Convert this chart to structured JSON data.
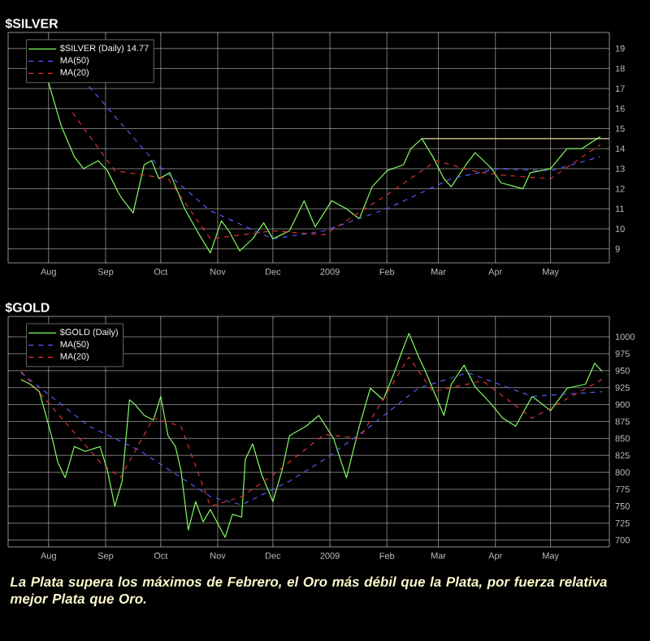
{
  "chart_data": [
    {
      "type": "line",
      "title": "$SILVER",
      "legend": "top left",
      "grid": true,
      "xlim": [
        "2008-07-10",
        "2009-06-02"
      ],
      "xticks": [
        {
          "value": "2008-08-01",
          "label": "Aug"
        },
        {
          "value": "2008-09-01",
          "label": "Sep"
        },
        {
          "value": "2008-10-01",
          "label": "Oct"
        },
        {
          "value": "2008-11-01",
          "label": "Nov"
        },
        {
          "value": "2008-12-01",
          "label": "Dec"
        },
        {
          "value": "2009-01-01",
          "label": "2009"
        },
        {
          "value": "2009-02-01",
          "label": "Feb"
        },
        {
          "value": "2009-03-01",
          "label": "Mar"
        },
        {
          "value": "2009-04-01",
          "label": "Apr"
        },
        {
          "value": "2009-05-01",
          "label": "May"
        }
      ],
      "ylim": [
        8.3,
        19.8
      ],
      "yticks": [
        9,
        10,
        11,
        12,
        13,
        14,
        15,
        16,
        17,
        18,
        19
      ],
      "series": [
        {
          "name": "$SILVER (Daily) 14.77",
          "color": "#80ff60",
          "line_style": "solid",
          "x": [
            "2008-08-01",
            "2008-08-08",
            "2008-08-15",
            "2008-08-20",
            "2008-08-28",
            "2008-09-02",
            "2008-09-08",
            "2008-09-10",
            "2008-09-16",
            "2008-09-22",
            "2008-09-26",
            "2008-09-30",
            "2008-10-06",
            "2008-10-14",
            "2008-10-22",
            "2008-10-28",
            "2008-11-03",
            "2008-11-07",
            "2008-11-13",
            "2008-11-20",
            "2008-11-26",
            "2008-12-01",
            "2008-12-10",
            "2008-12-18",
            "2008-12-24",
            "2009-01-02",
            "2009-01-10",
            "2009-01-17",
            "2009-01-24",
            "2009-02-01",
            "2009-02-10",
            "2009-02-14",
            "2009-02-20",
            "2009-02-26",
            "2009-03-04",
            "2009-03-08",
            "2009-03-16",
            "2009-03-21",
            "2009-03-30",
            "2009-04-04",
            "2009-04-16",
            "2009-04-20",
            "2009-05-01",
            "2009-05-10",
            "2009-05-18",
            "2009-05-28"
          ],
          "values": [
            17.3,
            15.1,
            13.6,
            13.0,
            13.4,
            12.9,
            11.8,
            11.5,
            10.8,
            13.2,
            13.4,
            12.5,
            12.8,
            11.0,
            9.7,
            8.8,
            10.4,
            9.9,
            8.9,
            9.5,
            10.3,
            9.5,
            9.9,
            11.4,
            10.1,
            11.4,
            11.0,
            10.5,
            12.1,
            12.9,
            13.2,
            14.0,
            14.5,
            13.6,
            12.5,
            12.1,
            13.2,
            13.8,
            13.0,
            12.3,
            12.0,
            12.8,
            13.0,
            14.0,
            14.0,
            14.6
          ]
        },
        {
          "name": "MA(50)",
          "color": "#5a5aff",
          "line_style": "dashed",
          "x": [
            "2008-08-23",
            "2008-09-29",
            "2008-10-28",
            "2008-12-01",
            "2008-12-29",
            "2009-02-01",
            "2009-03-08",
            "2009-04-02",
            "2009-05-01",
            "2009-05-28"
          ],
          "values": [
            17.1,
            13.2,
            10.9,
            9.5,
            9.9,
            11.0,
            12.5,
            13.0,
            12.9,
            13.6
          ]
        },
        {
          "name": "MA(20)",
          "color": "#e03030",
          "line_style": "dashed",
          "x": [
            "2008-08-14",
            "2008-09-06",
            "2008-10-05",
            "2008-10-28",
            "2008-12-01",
            "2008-12-29",
            "2009-02-01",
            "2009-02-28",
            "2009-03-19",
            "2009-04-02",
            "2009-05-01",
            "2009-05-28"
          ],
          "values": [
            15.8,
            12.9,
            12.5,
            9.5,
            9.9,
            9.7,
            11.7,
            13.4,
            12.9,
            12.7,
            12.5,
            14.2
          ]
        },
        {
          "color": "#e8d8a0",
          "line_style": "solid",
          "x": [
            "2009-02-20",
            "2009-06-02"
          ],
          "values": [
            14.5,
            14.5
          ]
        }
      ]
    },
    {
      "type": "line",
      "title": "$GOLD",
      "legend": "top left",
      "grid": true,
      "xlim": [
        "2008-07-10",
        "2009-06-02"
      ],
      "xticks": [
        {
          "value": "2008-08-01",
          "label": "Aug"
        },
        {
          "value": "2008-09-01",
          "label": "Sep"
        },
        {
          "value": "2008-10-01",
          "label": "Oct"
        },
        {
          "value": "2008-11-01",
          "label": "Nov"
        },
        {
          "value": "2008-12-01",
          "label": "Dec"
        },
        {
          "value": "2009-01-01",
          "label": "2009"
        },
        {
          "value": "2009-02-01",
          "label": "Feb"
        },
        {
          "value": "2009-03-01",
          "label": "Mar"
        },
        {
          "value": "2009-04-01",
          "label": "Apr"
        },
        {
          "value": "2009-05-01",
          "label": "May"
        }
      ],
      "ylim": [
        690,
        1030
      ],
      "yticks": [
        700,
        725,
        750,
        775,
        800,
        825,
        850,
        875,
        900,
        925,
        950,
        975,
        1000
      ],
      "annotations": [
        "La Plata supera los máximos de Febrero, el Oro más débil que la Plata, por fuerza relativa mejor Plata que Oro."
      ],
      "series": [
        {
          "name": "$GOLD (Daily)",
          "color": "#80ff60",
          "line_style": "solid",
          "x": [
            "2008-07-17",
            "2008-07-22",
            "2008-07-27",
            "2008-08-03",
            "2008-08-06",
            "2008-08-10",
            "2008-08-15",
            "2008-08-21",
            "2008-08-29",
            "2008-09-02",
            "2008-09-06",
            "2008-09-10",
            "2008-09-14",
            "2008-09-17",
            "2008-09-22",
            "2008-09-27",
            "2008-10-01",
            "2008-10-05",
            "2008-10-09",
            "2008-10-12",
            "2008-10-16",
            "2008-10-20",
            "2008-10-24",
            "2008-10-28",
            "2008-11-05",
            "2008-11-09",
            "2008-11-14",
            "2008-11-16",
            "2008-11-20",
            "2008-11-25",
            "2008-12-01",
            "2008-12-06",
            "2008-12-10",
            "2008-12-19",
            "2008-12-26",
            "2009-01-03",
            "2009-01-10",
            "2009-01-17",
            "2009-01-23",
            "2009-01-30",
            "2009-02-05",
            "2009-02-09",
            "2009-02-13",
            "2009-02-18",
            "2009-02-22",
            "2009-03-04",
            "2009-03-08",
            "2009-03-15",
            "2009-03-21",
            "2009-03-29",
            "2009-04-05",
            "2009-04-12",
            "2009-04-21",
            "2009-05-01",
            "2009-05-10",
            "2009-05-20",
            "2009-05-25",
            "2009-05-29"
          ],
          "values": [
            937,
            930,
            919,
            850,
            815,
            792,
            838,
            831,
            838,
            803,
            750,
            787,
            907,
            900,
            884,
            877,
            912,
            854,
            838,
            803,
            715,
            757,
            727,
            745,
            704,
            738,
            734,
            819,
            842,
            796,
            757,
            803,
            854,
            868,
            884,
            850,
            792,
            868,
            924,
            907,
            947,
            977,
            1005,
            972,
            949,
            884,
            930,
            958,
            926,
            903,
            880,
            868,
            912,
            891,
            924,
            930,
            961,
            949
          ]
        },
        {
          "name": "MA(50)",
          "color": "#5a5aff",
          "line_style": "dashed",
          "x": [
            "2008-07-17",
            "2008-08-23",
            "2008-09-19",
            "2008-10-28",
            "2008-11-14",
            "2008-12-10",
            "2008-12-29",
            "2009-01-23",
            "2009-02-18",
            "2009-03-17",
            "2009-04-21",
            "2009-05-29"
          ],
          "values": [
            947,
            868,
            833,
            764,
            752,
            787,
            819,
            868,
            924,
            947,
            912,
            919
          ]
        },
        {
          "name": "MA(20)",
          "color": "#e03030",
          "line_style": "dashed",
          "x": [
            "2008-07-17",
            "2008-08-29",
            "2008-09-09",
            "2008-09-27",
            "2008-10-12",
            "2008-10-28",
            "2008-11-14",
            "2008-12-01",
            "2008-12-29",
            "2009-01-17",
            "2009-02-13",
            "2009-02-26",
            "2009-03-25",
            "2009-04-21",
            "2009-05-29"
          ],
          "values": [
            949,
            815,
            792,
            880,
            868,
            750,
            764,
            796,
            856,
            850,
            970,
            919,
            935,
            880,
            937
          ]
        }
      ]
    }
  ]
}
